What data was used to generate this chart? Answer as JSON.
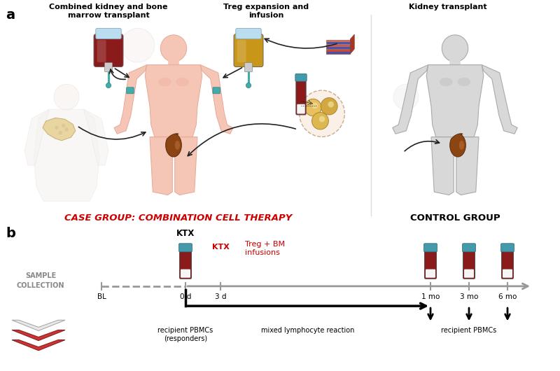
{
  "panel_a_label": "a",
  "panel_b_label": "b",
  "case_group_label": "CASE GROUP: COMBINATION CELL THERAPY",
  "control_group_label": "CONTROL GROUP",
  "sample_collection_label": "SAMPLE\nCOLLECTION",
  "title1": "Combined kidney and bone\nmarrow transplant",
  "title2": "Treg expansion and\ninfusion",
  "title3": "Kidney transplant",
  "timeline_labels": [
    "BL",
    "0 d",
    "3 d",
    "1 mo",
    "3 mo",
    "6 mo"
  ],
  "ktx_label": "KTX",
  "ktx2_label": "KTX",
  "treg_bm_label": "Treg + BM\ninfusions",
  "arrow1_label": "recipient PBMCs\n(responders)",
  "arrow2_label": "mixed lymphocyte reaction",
  "arrow3_label": "recipient PBMCs",
  "case_color": "#cc0000",
  "body_pink": "#f5c5b5",
  "body_pink_dark": "#e8a898",
  "body_pink_outline": "#d4956a",
  "body_gray": "#d8d8d8",
  "body_gray_outline": "#aaaaaa",
  "body_shadow": "#eeeeee",
  "blood_bag_red": "#8b1a1a",
  "blood_bag_yellow": "#c8971a",
  "bag_top_blue": "#aaddee",
  "tube_cap_teal": "#4499aa",
  "tube_red": "#8b1a1a",
  "tube_white": "#f0f0f0",
  "kidney_brown": "#8b4513",
  "kidney_light": "#c87040",
  "bone_color": "#e8d5a0",
  "bone_outline": "#c8b070",
  "tissue_red": "#cc5544",
  "tissue_blue": "#4466bb",
  "cell_bg": "#f5e5d5",
  "cell_color": "#d4a040",
  "timeline_gray": "#999999",
  "arrow_color": "#222222"
}
